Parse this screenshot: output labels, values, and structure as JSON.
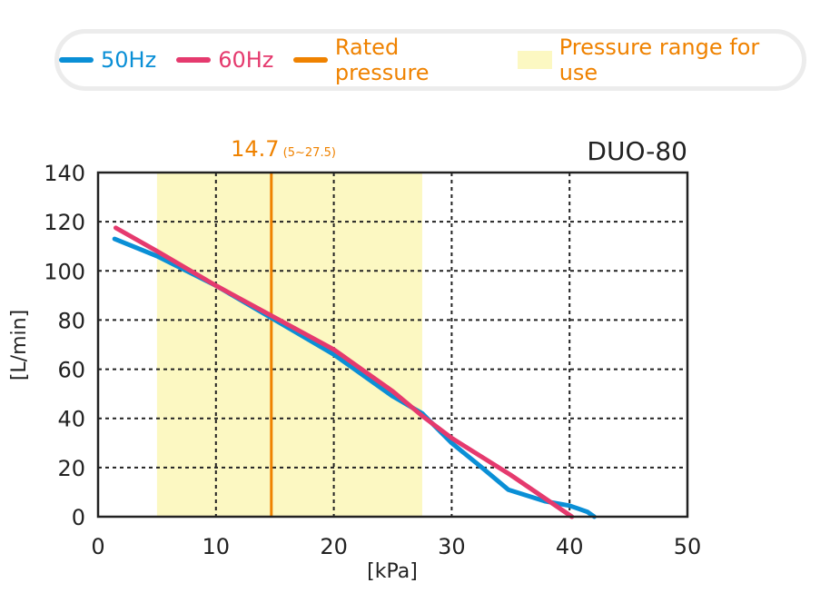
{
  "legend": [
    {
      "label": "50Hz",
      "color": "#0a8fd6",
      "type": "line"
    },
    {
      "label": "60Hz",
      "color": "#e53a6e",
      "type": "line"
    },
    {
      "label": "Rated pressure",
      "color": "#ef8200",
      "type": "line"
    },
    {
      "label": "Pressure range for use",
      "color": "#fcf8c2",
      "text_color": "#ef8200",
      "type": "box"
    }
  ],
  "chart_data": {
    "type": "line",
    "title": "DUO-80",
    "xlabel": "[kPa]",
    "ylabel": "[L/min]",
    "xlim": [
      0,
      50
    ],
    "ylim": [
      0,
      140
    ],
    "xticks": [
      0,
      10,
      20,
      30,
      40,
      50
    ],
    "yticks": [
      0,
      20,
      40,
      60,
      80,
      100,
      120,
      140
    ],
    "grid": true,
    "rated_pressure": 14.7,
    "rated_label": "14.7",
    "range_label": "(5~27.5)",
    "pressure_range": [
      5,
      27.5
    ],
    "series": [
      {
        "name": "50Hz",
        "color": "#0a8fd6",
        "x": [
          1.4,
          5,
          10,
          15,
          20,
          25,
          27.5,
          30,
          32.3,
          34.8,
          37.9,
          40,
          41.5,
          42.1
        ],
        "y": [
          113,
          106,
          94,
          80,
          66,
          49,
          42,
          30,
          21,
          11,
          6.3,
          4.5,
          2,
          0
        ]
      },
      {
        "name": "60Hz",
        "color": "#e53a6e",
        "x": [
          1.5,
          5,
          10,
          15,
          20,
          25,
          27.5,
          30,
          35,
          40.2
        ],
        "y": [
          117.5,
          108,
          94,
          81,
          68,
          51,
          41,
          32,
          17,
          0
        ]
      }
    ]
  }
}
